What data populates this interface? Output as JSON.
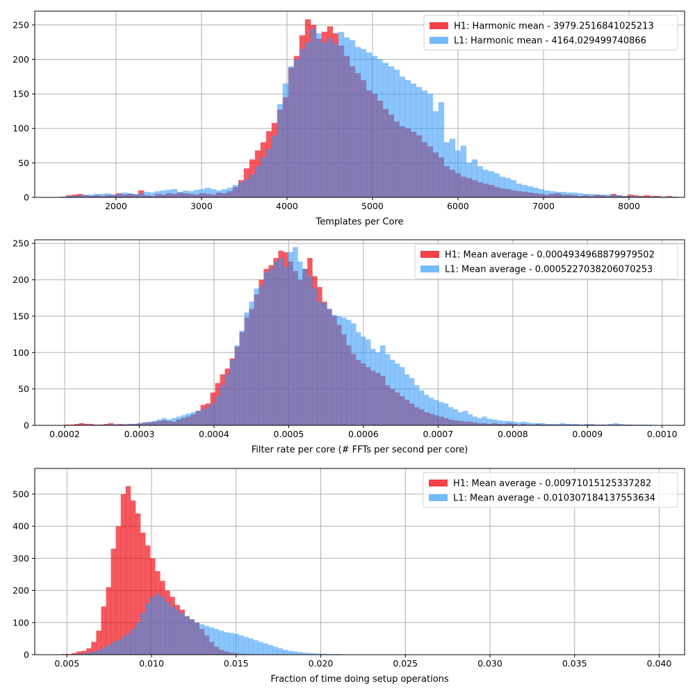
{
  "figure": {
    "colors": {
      "h1": "#f0000a",
      "l1": "#2b95f8",
      "h1_alpha": 0.65,
      "l1_alpha": 0.55,
      "grid": "#b0b0b0"
    }
  },
  "chart_data": [
    {
      "type": "histogram",
      "xlabel": "Templates per Core",
      "ylabel": "",
      "xlim": [
        1050,
        8650
      ],
      "ylim": [
        0,
        270
      ],
      "xticks": [
        2000,
        3000,
        4000,
        5000,
        6000,
        7000,
        8000
      ],
      "xtick_labels": [
        "2000",
        "3000",
        "4000",
        "5000",
        "6000",
        "7000",
        "8000"
      ],
      "yticks": [
        0,
        50,
        100,
        150,
        200,
        250
      ],
      "ytick_labels": [
        "0",
        "50",
        "100",
        "150",
        "200",
        "250"
      ],
      "grid": true,
      "legend_position": "top-right",
      "legend": [
        {
          "label": "H1: Harmonic mean  - 3979.2516841025213",
          "color": "#f0000a"
        },
        {
          "label": "L1: Harmonic mean  - 4164.029499740866",
          "color": "#2b95f8"
        }
      ],
      "bins": {
        "start": 1350,
        "width": 65
      },
      "series": [
        {
          "name": "H1",
          "counts": [
            1,
            3,
            4,
            5,
            3,
            2,
            3,
            2,
            3,
            4,
            6,
            4,
            5,
            4,
            10,
            3,
            2,
            5,
            4,
            6,
            5,
            7,
            6,
            5,
            4,
            6,
            5,
            4,
            7,
            6,
            9,
            15,
            25,
            42,
            55,
            68,
            80,
            96,
            108,
            127,
            145,
            188,
            205,
            235,
            258,
            250,
            230,
            240,
            248,
            238,
            220,
            205,
            190,
            180,
            170,
            155,
            150,
            140,
            128,
            120,
            110,
            103,
            100,
            95,
            90,
            80,
            74,
            65,
            58,
            45,
            40,
            35,
            30,
            28,
            25,
            22,
            20,
            18,
            15,
            13,
            12,
            10,
            9,
            8,
            7,
            6,
            5,
            4,
            5,
            6,
            4,
            4,
            3,
            2,
            3,
            2,
            4,
            3,
            2,
            5,
            3,
            2,
            4,
            3,
            2,
            3,
            2,
            2,
            1,
            2,
            1
          ]
        },
        {
          "name": "L1",
          "counts": [
            1,
            2,
            2,
            3,
            4,
            4,
            5,
            5,
            6,
            4,
            5,
            7,
            6,
            5,
            6,
            8,
            7,
            9,
            10,
            11,
            12,
            8,
            10,
            9,
            11,
            12,
            14,
            12,
            10,
            12,
            14,
            18,
            22,
            26,
            33,
            45,
            58,
            70,
            90,
            135,
            165,
            190,
            200,
            215,
            225,
            245,
            238,
            225,
            230,
            222,
            240,
            232,
            228,
            218,
            215,
            210,
            205,
            200,
            195,
            190,
            185,
            175,
            170,
            165,
            160,
            155,
            150,
            125,
            138,
            80,
            85,
            68,
            75,
            50,
            55,
            45,
            40,
            38,
            35,
            30,
            28,
            25,
            20,
            18,
            16,
            14,
            12,
            10,
            9,
            8,
            8,
            7,
            7,
            6,
            5,
            5,
            4,
            4,
            4,
            3,
            3,
            2,
            2,
            2,
            1,
            1,
            1,
            1,
            1,
            1,
            1
          ]
        }
      ]
    },
    {
      "type": "histogram",
      "xlabel": "Filter rate per core (# FFTs per second per core)",
      "ylabel": "",
      "xlim": [
        0.00016,
        0.00103
      ],
      "ylim": [
        0,
        255
      ],
      "xticks": [
        0.0002,
        0.0003,
        0.0004,
        0.0005,
        0.0006,
        0.0007,
        0.0008,
        0.0009,
        0.001
      ],
      "xtick_labels": [
        "0.0002",
        "0.0003",
        "0.0004",
        "0.0005",
        "0.0006",
        "0.0007",
        "0.0008",
        "0.0009",
        "0.0010"
      ],
      "yticks": [
        0,
        50,
        100,
        150,
        200,
        250
      ],
      "ytick_labels": [
        "0",
        "50",
        "100",
        "150",
        "200",
        "250"
      ],
      "grid": true,
      "legend_position": "top-right",
      "legend": [
        {
          "label": "H1: Mean average - 0.0004934968879979502",
          "color": "#f0000a"
        },
        {
          "label": "L1: Mean average - 0.0005227038206070253",
          "color": "#2b95f8"
        }
      ],
      "bins": {
        "start": 0.0002,
        "width": 6.5e-06
      },
      "series": [
        {
          "name": "H1",
          "counts": [
            1,
            1,
            2,
            3,
            2,
            2,
            1,
            1,
            2,
            3,
            1,
            2,
            1,
            2,
            2,
            3,
            4,
            4,
            5,
            6,
            7,
            6,
            5,
            8,
            10,
            12,
            15,
            20,
            28,
            30,
            45,
            58,
            70,
            78,
            92,
            108,
            128,
            148,
            160,
            180,
            200,
            215,
            220,
            230,
            240,
            238,
            225,
            212,
            200,
            215,
            230,
            205,
            190,
            170,
            160,
            150,
            138,
            125,
            110,
            98,
            90,
            85,
            80,
            75,
            72,
            68,
            55,
            50,
            45,
            40,
            35,
            30,
            25,
            22,
            18,
            16,
            14,
            12,
            10,
            8,
            7,
            6,
            5,
            5,
            4,
            3,
            3,
            2,
            3,
            2,
            2,
            3,
            2,
            1,
            2,
            1,
            1,
            2,
            1,
            1,
            1,
            1,
            1,
            1,
            1,
            1,
            1,
            1,
            1,
            1,
            1,
            1,
            1,
            1,
            1,
            1,
            1
          ]
        },
        {
          "name": "L1",
          "counts": [
            0,
            0,
            0,
            0,
            1,
            1,
            1,
            1,
            1,
            1,
            2,
            1,
            2,
            2,
            2,
            3,
            4,
            5,
            6,
            8,
            10,
            8,
            10,
            12,
            14,
            16,
            18,
            20,
            22,
            25,
            30,
            40,
            55,
            70,
            90,
            110,
            130,
            155,
            170,
            188,
            192,
            210,
            215,
            225,
            230,
            218,
            238,
            245,
            225,
            215,
            205,
            188,
            170,
            168,
            160,
            152,
            150,
            148,
            145,
            140,
            128,
            122,
            118,
            105,
            100,
            110,
            98,
            90,
            85,
            80,
            70,
            65,
            55,
            48,
            42,
            38,
            35,
            32,
            30,
            25,
            22,
            18,
            20,
            15,
            12,
            10,
            12,
            9,
            8,
            7,
            6,
            6,
            5,
            4,
            5,
            4,
            3,
            3,
            3,
            2,
            2,
            2,
            3,
            2,
            2,
            2,
            1,
            2,
            2,
            1,
            1,
            1,
            2,
            3,
            2,
            1,
            1,
            1,
            1,
            1,
            1
          ]
        }
      ]
    },
    {
      "type": "histogram",
      "xlabel": "Fraction of time doing setup operations",
      "ylabel": "",
      "xlim": [
        0.0031,
        0.0415
      ],
      "ylim": [
        0,
        580
      ],
      "xticks": [
        0.005,
        0.01,
        0.015,
        0.02,
        0.025,
        0.03,
        0.035,
        0.04
      ],
      "xtick_labels": [
        "0.005",
        "0.010",
        "0.015",
        "0.020",
        "0.025",
        "0.030",
        "0.035",
        "0.040"
      ],
      "yticks": [
        0,
        100,
        200,
        300,
        400,
        500
      ],
      "ytick_labels": [
        "0",
        "100",
        "200",
        "300",
        "400",
        "500"
      ],
      "grid": true,
      "legend_position": "top-right",
      "legend": [
        {
          "label": "H1: Mean average - 0.00971015125337282",
          "color": "#f0000a"
        },
        {
          "label": "L1: Mean average - 0.010307184137553634",
          "color": "#2b95f8"
        }
      ],
      "bins": {
        "start": 0.0047,
        "width": 0.00029
      },
      "series": [
        {
          "name": "H1",
          "counts": [
            2,
            2,
            5,
            10,
            12,
            20,
            40,
            75,
            150,
            210,
            330,
            400,
            500,
            525,
            480,
            440,
            380,
            340,
            300,
            260,
            230,
            200,
            180,
            155,
            140,
            120,
            110,
            100,
            80,
            60,
            40,
            25,
            15,
            10,
            6,
            4,
            3,
            2,
            2,
            1,
            1,
            1,
            1,
            1,
            1,
            1,
            1,
            1,
            1,
            1,
            1,
            1,
            1,
            1,
            1,
            1,
            1,
            1,
            1,
            1,
            1,
            1,
            1,
            1,
            1,
            1,
            1,
            1,
            1,
            1,
            1,
            1,
            1,
            1,
            1,
            1,
            1,
            1,
            1,
            1,
            1,
            1,
            1,
            1,
            1,
            1,
            1,
            1,
            1,
            1,
            1,
            1,
            1,
            1,
            1,
            1,
            1,
            1,
            1,
            1,
            1,
            1,
            1,
            1,
            1,
            1,
            1,
            1,
            1,
            1,
            1,
            1,
            1,
            1,
            1,
            1,
            1,
            1,
            1,
            1,
            1,
            1,
            1,
            1,
            1,
            1,
            1,
            1
          ]
        },
        {
          "name": "L1",
          "counts": [
            0,
            0,
            1,
            2,
            4,
            6,
            10,
            15,
            22,
            30,
            38,
            45,
            55,
            65,
            80,
            100,
            130,
            160,
            180,
            190,
            180,
            165,
            150,
            140,
            130,
            120,
            110,
            100,
            95,
            90,
            85,
            80,
            75,
            70,
            68,
            65,
            60,
            55,
            50,
            45,
            40,
            35,
            30,
            25,
            20,
            15,
            12,
            10,
            8,
            6,
            5,
            4,
            3,
            3,
            2,
            2,
            2,
            1,
            1,
            1,
            1,
            1,
            1,
            1,
            1,
            1,
            1,
            1,
            1,
            1,
            1,
            1,
            1,
            1,
            1,
            1,
            1,
            1,
            1,
            1,
            1,
            1,
            1,
            1,
            1,
            1,
            1,
            1,
            1,
            1,
            1,
            1,
            1,
            1,
            1,
            1,
            1,
            1,
            1,
            1,
            1,
            1,
            1,
            1,
            1,
            1,
            1,
            1,
            1,
            1,
            1,
            1,
            1,
            1,
            1,
            1,
            1,
            1,
            1,
            1,
            1,
            1,
            1,
            1,
            1,
            1,
            1,
            1
          ]
        }
      ]
    }
  ]
}
